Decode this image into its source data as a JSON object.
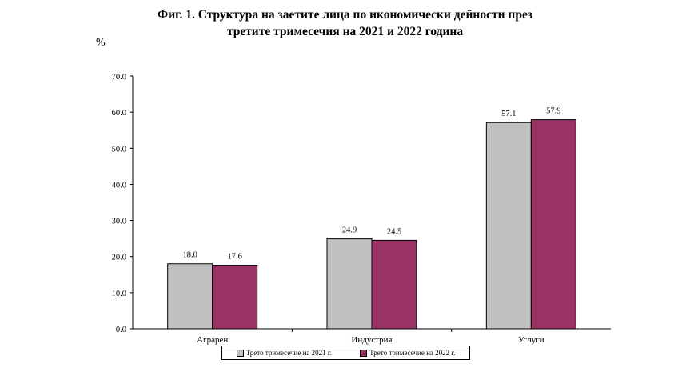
{
  "chart_data": {
    "type": "bar",
    "title_lines": [
      "Фиг. 1. Структура на заетите лица по икономически дейности през",
      "третите тримесечия на 2021 и 2022 година"
    ],
    "ylabel": "%",
    "xlabel": "",
    "ylim": [
      0,
      70
    ],
    "yticks": [
      "0.0",
      "10.0",
      "20.0",
      "30.0",
      "40.0",
      "50.0",
      "60.0",
      "70.0"
    ],
    "categories": [
      "Аграрен",
      "Индустрия",
      "Услуги"
    ],
    "series": [
      {
        "name": "Трето тримесечие на 2021 г.",
        "values": [
          18.0,
          24.9,
          57.1
        ],
        "labels": [
          "18.0",
          "24.9",
          "57.1"
        ],
        "color": "#c0c0c0"
      },
      {
        "name": "Трето тримесечие на 2022 г.",
        "values": [
          17.6,
          24.5,
          57.9
        ],
        "labels": [
          "17.6",
          "24.5",
          "57.9"
        ],
        "color": "#993366"
      }
    ],
    "grid": false,
    "legend_position": "bottom"
  }
}
